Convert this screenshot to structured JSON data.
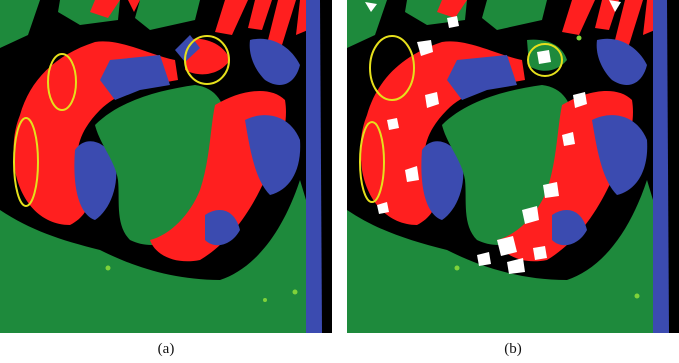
{
  "figure": {
    "panels": [
      {
        "id": "a",
        "caption": "(a)"
      },
      {
        "id": "b",
        "caption": "(b)"
      }
    ],
    "colors": {
      "background": "#000000",
      "green": "#1e8a3c",
      "red": "#ff1f1f",
      "blue": "#3b4bb0",
      "white": "#ffffff",
      "highlight_ellipse": "#e6e01c",
      "light_green_speck": "#7fd23a"
    }
  }
}
